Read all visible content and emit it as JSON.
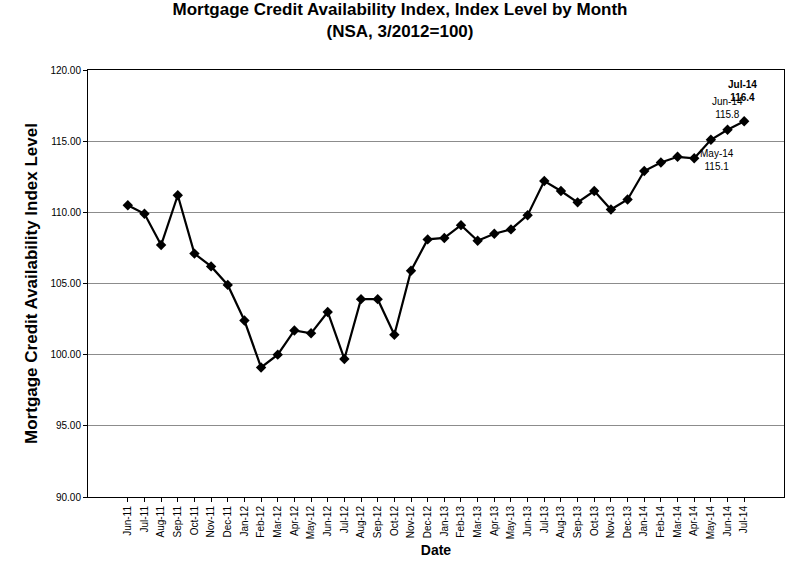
{
  "chart_data": {
    "type": "line",
    "title": "Mortgage Credit Availability Index, Index Level by Month\n(NSA, 3/2012=100)",
    "x_label": "Date",
    "y_label": "Mortgage Credit Availability Index Level",
    "categories": [
      "Jun-11",
      "Jul-11",
      "Aug-11",
      "Sep-11",
      "Oct-11",
      "Nov-11",
      "Dec-11",
      "Jan-12",
      "Feb-12",
      "Mar-12",
      "Apr-12",
      "May-12",
      "Jun-12",
      "Jul-12",
      "Aug-12",
      "Sep-12",
      "Oct-12",
      "Nov-12",
      "Dec-12",
      "Jan-13",
      "Feb-13",
      "Mar-13",
      "Apr-13",
      "May-13",
      "Jun-13",
      "Jul-13",
      "Aug-13",
      "Sep-13",
      "Oct-13",
      "Nov-13",
      "Dec-13",
      "Jan-14",
      "Feb-14",
      "Mar-14",
      "Apr-14",
      "May-14",
      "Jun-14",
      "Jul-14"
    ],
    "values": [
      110.5,
      109.9,
      107.7,
      111.2,
      107.1,
      106.2,
      104.9,
      102.4,
      99.1,
      100.0,
      101.7,
      101.5,
      103.0,
      99.7,
      103.9,
      103.9,
      101.4,
      105.9,
      108.1,
      108.2,
      109.1,
      108.0,
      108.5,
      108.8,
      109.8,
      112.2,
      111.5,
      110.7,
      111.5,
      110.2,
      110.9,
      112.9,
      113.5,
      113.9,
      113.8,
      115.1,
      115.8,
      116.4
    ],
    "color": "#000000",
    "marker": "diamond",
    "line_style": "solid",
    "ylim": [
      90,
      120
    ],
    "yticks": [
      {
        "value": 90,
        "label": "90.00"
      },
      {
        "value": 95,
        "label": "95.00"
      },
      {
        "value": 100,
        "label": "100.00"
      },
      {
        "value": 105,
        "label": "105.00"
      },
      {
        "value": 110,
        "label": "110.00"
      },
      {
        "value": 115,
        "label": "115.00"
      },
      {
        "value": 120,
        "label": "120.00"
      }
    ],
    "grid": true,
    "annotations": [
      {
        "x": "May-14",
        "y": 115.1,
        "lines": [
          "May-14",
          "115.1"
        ]
      },
      {
        "x": "Jun-14",
        "y": 115.8,
        "lines": [
          "Jun-14",
          "115.8"
        ]
      },
      {
        "x": "Jul-14",
        "y": 116.4,
        "lines": [
          "Jul-14",
          "116.4"
        ]
      }
    ]
  }
}
